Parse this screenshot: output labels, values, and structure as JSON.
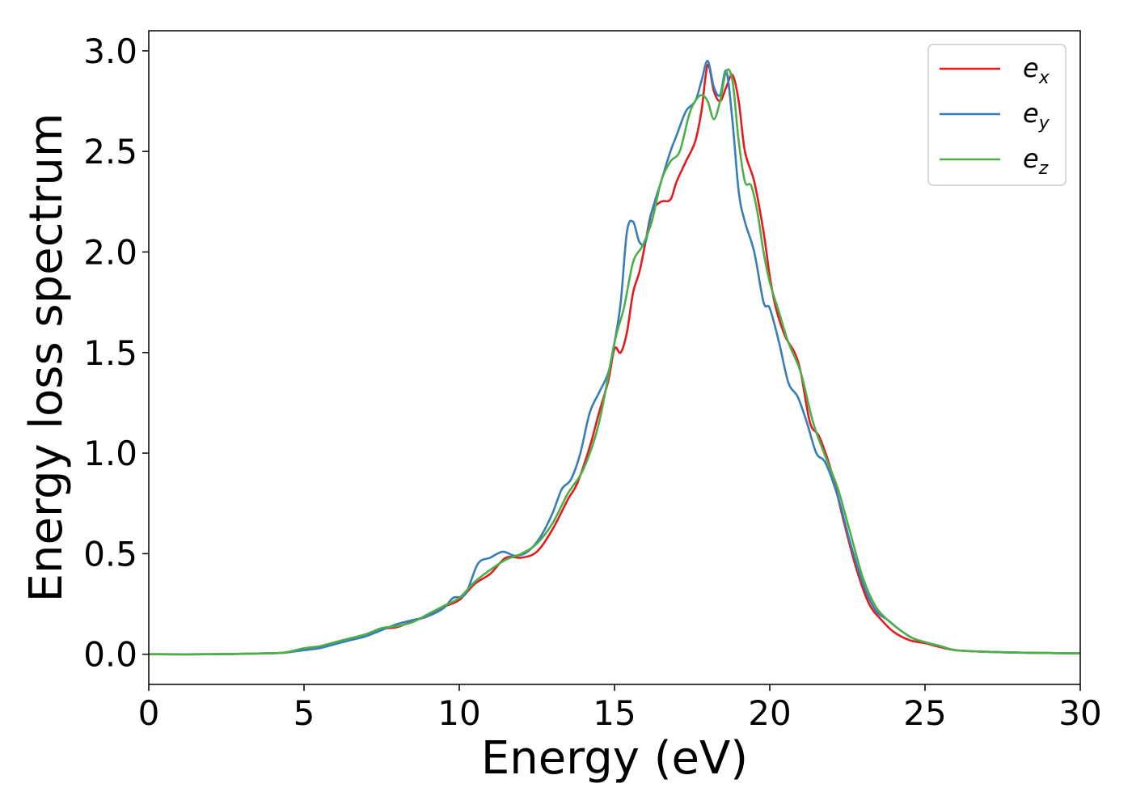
{
  "chart_data": {
    "type": "line",
    "xlabel": "Energy (eV)",
    "ylabel": "Energy loss spectrum",
    "xlim": [
      0,
      30
    ],
    "ylim": [
      -0.15,
      3.1
    ],
    "xticks": [
      0,
      5,
      10,
      15,
      20,
      25,
      30
    ],
    "xtick_labels": [
      "0",
      "5",
      "10",
      "15",
      "20",
      "25",
      "30"
    ],
    "yticks": [
      0.0,
      0.5,
      1.0,
      1.5,
      2.0,
      2.5,
      3.0
    ],
    "ytick_labels": [
      "0.0",
      "0.5",
      "1.0",
      "1.5",
      "2.0",
      "2.5",
      "3.0"
    ],
    "grid": false,
    "legend_position": "top-right",
    "series": [
      {
        "name": "e_x",
        "label_main": "e",
        "label_sub": "x",
        "color": "#e41a1c",
        "x": [
          0,
          2,
          4,
          4.5,
          5,
          5.5,
          6,
          6.5,
          7,
          7.5,
          8,
          8.5,
          9,
          9.5,
          10,
          10.5,
          11,
          11.5,
          12,
          12.5,
          13,
          13.5,
          13.8,
          14.2,
          14.5,
          14.8,
          15.0,
          15.2,
          15.4,
          15.6,
          15.8,
          16.0,
          16.2,
          16.5,
          16.8,
          17.0,
          17.3,
          17.6,
          17.8,
          18.0,
          18.2,
          18.4,
          18.6,
          18.8,
          19.0,
          19.2,
          19.5,
          19.8,
          20.0,
          20.2,
          20.5,
          20.8,
          21.0,
          21.3,
          21.6,
          22.0,
          22.4,
          22.8,
          23.2,
          23.6,
          24.0,
          24.5,
          25,
          25.5,
          26,
          27,
          28,
          29,
          30
        ],
        "y": [
          0.0,
          0.0,
          0.005,
          0.01,
          0.025,
          0.035,
          0.055,
          0.075,
          0.095,
          0.125,
          0.135,
          0.165,
          0.19,
          0.235,
          0.27,
          0.35,
          0.4,
          0.48,
          0.48,
          0.51,
          0.62,
          0.77,
          0.85,
          1.03,
          1.2,
          1.36,
          1.52,
          1.5,
          1.6,
          1.8,
          1.9,
          2.05,
          2.2,
          2.25,
          2.26,
          2.35,
          2.45,
          2.55,
          2.7,
          2.93,
          2.8,
          2.75,
          2.82,
          2.88,
          2.75,
          2.5,
          2.35,
          2.1,
          1.88,
          1.72,
          1.58,
          1.5,
          1.4,
          1.15,
          1.08,
          0.9,
          0.65,
          0.42,
          0.25,
          0.17,
          0.11,
          0.07,
          0.055,
          0.035,
          0.02,
          0.012,
          0.008,
          0.006,
          0.004
        ]
      },
      {
        "name": "e_y",
        "label_main": "e",
        "label_sub": "y",
        "color": "#377eb8",
        "x": [
          0,
          2,
          4,
          4.5,
          5,
          5.5,
          6,
          6.5,
          7,
          7.5,
          8,
          8.5,
          9,
          9.5,
          9.8,
          10.2,
          10.6,
          11.0,
          11.4,
          11.8,
          12.2,
          12.6,
          13.0,
          13.3,
          13.6,
          13.9,
          14.2,
          14.5,
          14.8,
          15.0,
          15.2,
          15.4,
          15.6,
          15.8,
          16.0,
          16.2,
          16.5,
          16.8,
          17.0,
          17.3,
          17.6,
          17.8,
          18.0,
          18.2,
          18.4,
          18.6,
          18.8,
          19.0,
          19.2,
          19.5,
          19.8,
          20.0,
          20.3,
          20.6,
          20.9,
          21.2,
          21.5,
          21.8,
          22.2,
          22.6,
          23.0,
          23.4,
          23.8,
          24.2,
          24.6,
          25,
          25.5,
          26,
          27,
          28,
          29,
          30
        ],
        "y": [
          0.0,
          0.0,
          0.005,
          0.01,
          0.02,
          0.03,
          0.05,
          0.07,
          0.09,
          0.12,
          0.15,
          0.17,
          0.19,
          0.23,
          0.28,
          0.3,
          0.45,
          0.48,
          0.51,
          0.49,
          0.51,
          0.58,
          0.7,
          0.82,
          0.87,
          1.0,
          1.2,
          1.3,
          1.4,
          1.55,
          1.75,
          2.1,
          2.15,
          2.05,
          2.05,
          2.2,
          2.35,
          2.5,
          2.58,
          2.7,
          2.75,
          2.85,
          2.95,
          2.82,
          2.78,
          2.9,
          2.65,
          2.3,
          2.15,
          2.0,
          1.75,
          1.72,
          1.55,
          1.35,
          1.28,
          1.15,
          1.0,
          0.95,
          0.78,
          0.55,
          0.35,
          0.22,
          0.17,
          0.12,
          0.08,
          0.06,
          0.04,
          0.02,
          0.012,
          0.008,
          0.006,
          0.004
        ]
      },
      {
        "name": "e_z",
        "label_main": "e",
        "label_sub": "z",
        "color": "#4daf4a",
        "x": [
          0,
          2,
          4,
          4.5,
          5,
          5.5,
          6,
          6.5,
          7,
          7.5,
          8,
          8.5,
          9,
          9.5,
          10,
          10.5,
          11,
          11.5,
          12,
          12.5,
          13,
          13.5,
          14,
          14.5,
          15.0,
          15.3,
          15.6,
          15.9,
          16.2,
          16.5,
          16.8,
          17.1,
          17.4,
          17.6,
          17.8,
          18.0,
          18.2,
          18.4,
          18.6,
          18.8,
          19.0,
          19.2,
          19.4,
          19.6,
          19.8,
          20.0,
          20.3,
          20.6,
          21.0,
          21.4,
          21.8,
          22.2,
          22.6,
          23.0,
          23.4,
          23.8,
          24.2,
          24.6,
          25,
          25.5,
          26,
          27,
          28,
          29,
          30
        ],
        "y": [
          0.0,
          0.0,
          0.005,
          0.012,
          0.03,
          0.04,
          0.06,
          0.08,
          0.1,
          0.13,
          0.14,
          0.16,
          0.2,
          0.24,
          0.28,
          0.36,
          0.42,
          0.47,
          0.5,
          0.55,
          0.65,
          0.8,
          0.92,
          1.15,
          1.55,
          1.72,
          1.95,
          2.03,
          2.15,
          2.35,
          2.45,
          2.5,
          2.68,
          2.75,
          2.78,
          2.75,
          2.66,
          2.75,
          2.9,
          2.85,
          2.55,
          2.35,
          2.33,
          2.2,
          2.0,
          1.85,
          1.7,
          1.55,
          1.4,
          1.15,
          0.98,
          0.82,
          0.6,
          0.38,
          0.24,
          0.17,
          0.12,
          0.08,
          0.06,
          0.04,
          0.02,
          0.012,
          0.008,
          0.006,
          0.004
        ]
      }
    ]
  }
}
